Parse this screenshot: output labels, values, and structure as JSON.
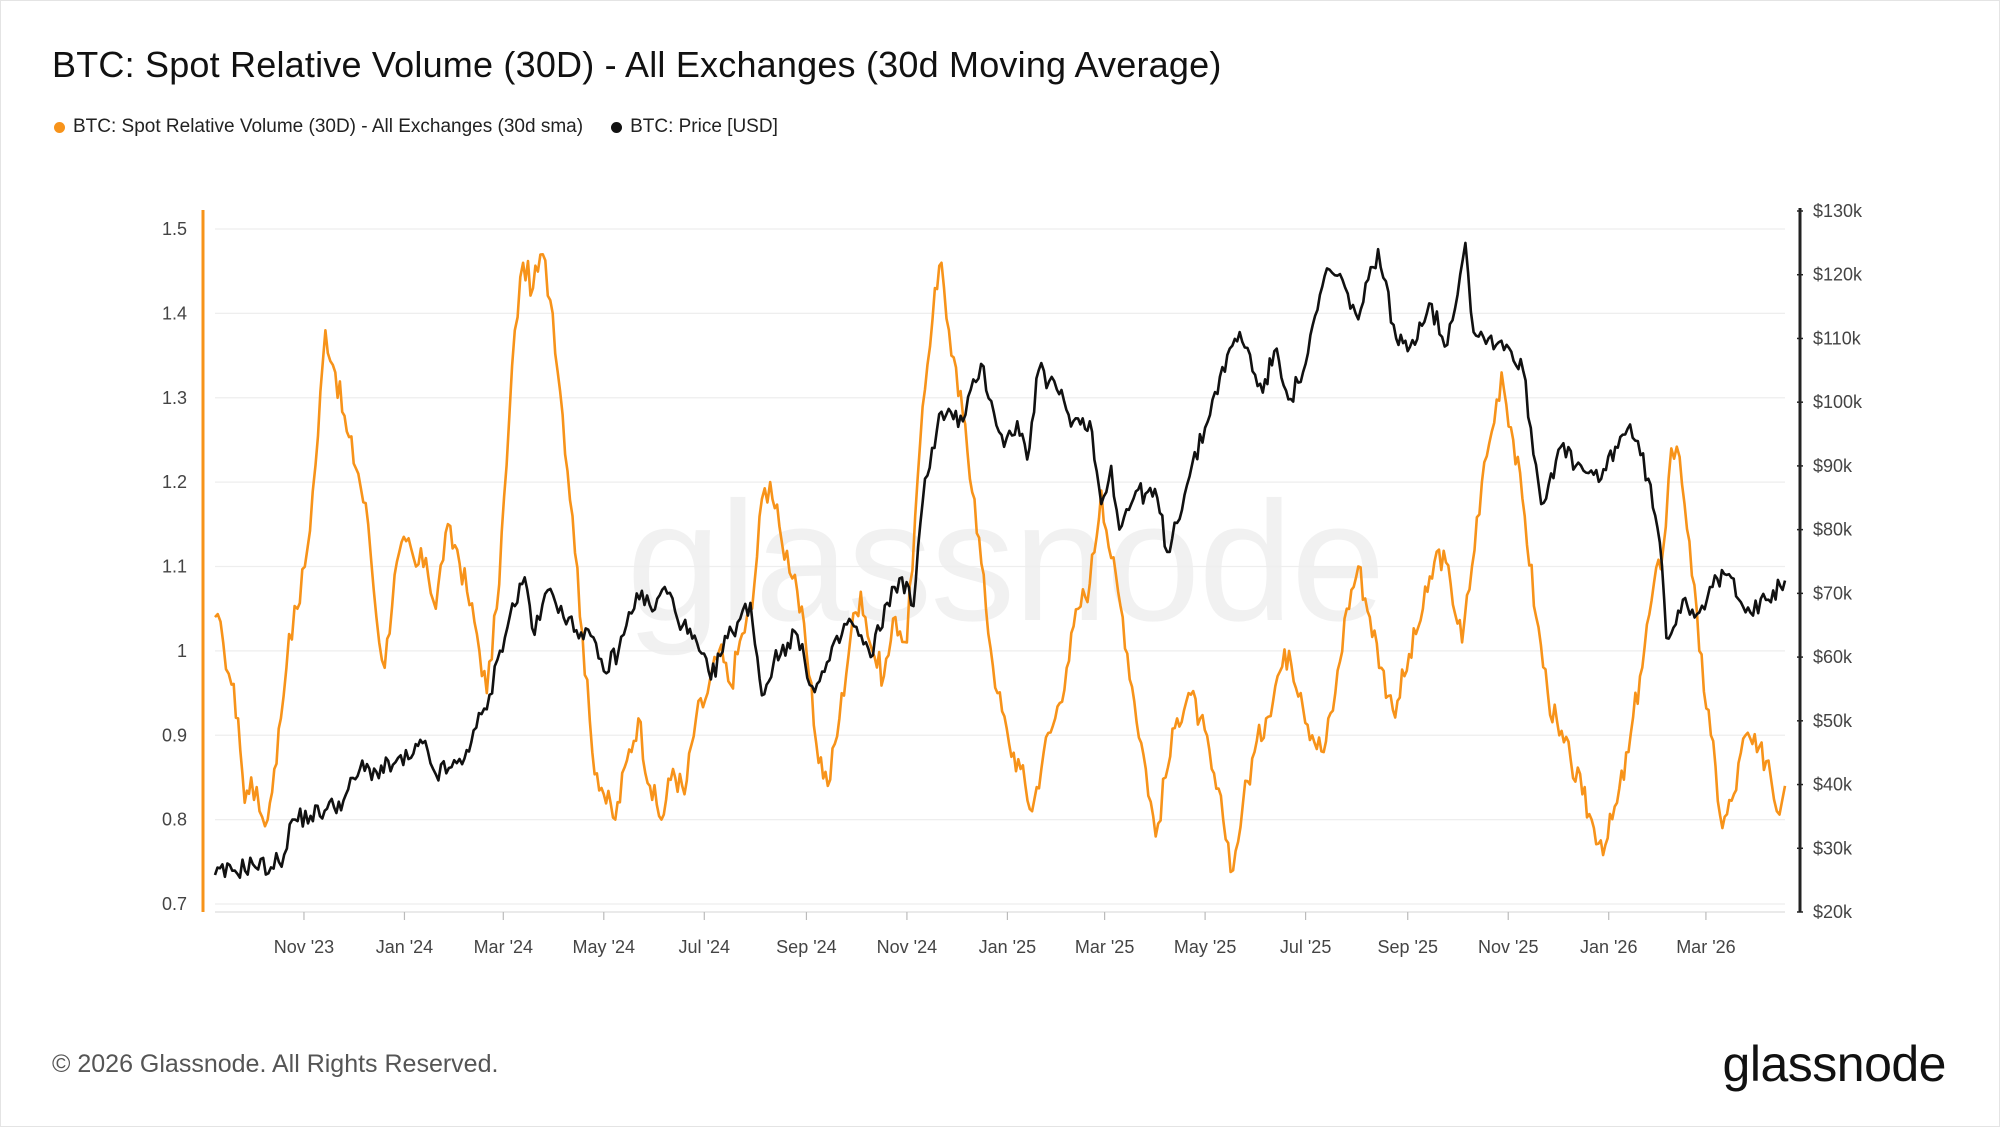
{
  "header": {
    "title": "BTC: Spot Relative Volume (30D) - All Exchanges (30d Moving Average)"
  },
  "legend": {
    "items": [
      {
        "label": "BTC: Spot Relative Volume (30D) - All Exchanges (30d sma)",
        "color": "#f7931a"
      },
      {
        "label": "BTC: Price [USD]",
        "color": "#111111"
      }
    ]
  },
  "footer": {
    "copyright": "© 2026 Glassnode. All Rights Reserved.",
    "brand": "glassnode"
  },
  "watermark": "glassnode",
  "chart_data": {
    "type": "line",
    "title": "BTC: Spot Relative Volume (30D) - All Exchanges (30d Moving Average)",
    "x_axis": {
      "start": "2023-09-08",
      "end": "2026-04-18",
      "tick_labels": [
        "Nov '23",
        "Jan '24",
        "Mar '24",
        "May '24",
        "Jul '24",
        "Sep '24",
        "Nov '24",
        "Jan '25",
        "Mar '25",
        "May '25",
        "Jul '25",
        "Sep '25",
        "Nov '25",
        "Jan '26",
        "Mar '26"
      ],
      "tick_dates": [
        "2023-11-01",
        "2024-01-01",
        "2024-03-01",
        "2024-05-01",
        "2024-07-01",
        "2024-09-01",
        "2024-11-01",
        "2025-01-01",
        "2025-03-01",
        "2025-05-01",
        "2025-07-01",
        "2025-09-01",
        "2025-11-01",
        "2026-01-01",
        "2026-03-01"
      ]
    },
    "y_left": {
      "ylim": [
        0.7,
        1.52
      ],
      "tick_labels": [
        "0.7",
        "0.8",
        "0.9",
        "1",
        "1.1",
        "1.2",
        "1.3",
        "1.4",
        "1.5"
      ],
      "tick_values": [
        0.7,
        0.8,
        0.9,
        1.0,
        1.1,
        1.2,
        1.3,
        1.4,
        1.5
      ]
    },
    "y_right": {
      "ylim": [
        20000,
        130000
      ],
      "tick_labels": [
        "$20k",
        "$30k",
        "$40k",
        "$50k",
        "$60k",
        "$70k",
        "$80k",
        "$90k",
        "$100k",
        "$110k",
        "$120k",
        "$130k"
      ],
      "tick_values": [
        20000,
        30000,
        40000,
        50000,
        60000,
        70000,
        80000,
        90000,
        100000,
        110000,
        120000,
        130000
      ]
    },
    "grid": true,
    "legend_position": "top-left",
    "series": [
      {
        "name": "BTC: Spot Relative Volume (30D) - All Exchanges (30d sma)",
        "color": "#f7931a",
        "axis": "left",
        "points": [
          [
            "2023-09-08",
            1.04
          ],
          [
            "2023-09-13",
            1.01
          ],
          [
            "2023-09-18",
            0.96
          ],
          [
            "2023-09-22",
            0.92
          ],
          [
            "2023-09-26",
            0.82
          ],
          [
            "2023-09-30",
            0.85
          ],
          [
            "2023-10-05",
            0.81
          ],
          [
            "2023-10-10",
            0.8
          ],
          [
            "2023-10-14",
            0.86
          ],
          [
            "2023-10-18",
            0.92
          ],
          [
            "2023-10-23",
            1.02
          ],
          [
            "2023-10-28",
            1.05
          ],
          [
            "2023-11-03",
            1.12
          ],
          [
            "2023-11-08",
            1.22
          ],
          [
            "2023-11-14",
            1.38
          ],
          [
            "2023-11-20",
            1.33
          ],
          [
            "2023-11-27",
            1.26
          ],
          [
            "2023-12-04",
            1.21
          ],
          [
            "2023-12-10",
            1.15
          ],
          [
            "2023-12-15",
            1.04
          ],
          [
            "2023-12-20",
            0.98
          ],
          [
            "2023-12-26",
            1.09
          ],
          [
            "2024-01-02",
            1.13
          ],
          [
            "2024-01-08",
            1.1
          ],
          [
            "2024-01-14",
            1.11
          ],
          [
            "2024-01-20",
            1.05
          ],
          [
            "2024-01-26",
            1.14
          ],
          [
            "2024-02-02",
            1.12
          ],
          [
            "2024-02-08",
            1.07
          ],
          [
            "2024-02-14",
            1.02
          ],
          [
            "2024-02-20",
            0.95
          ],
          [
            "2024-02-26",
            1.05
          ],
          [
            "2024-03-03",
            1.22
          ],
          [
            "2024-03-08",
            1.38
          ],
          [
            "2024-03-13",
            1.46
          ],
          [
            "2024-03-19",
            1.43
          ],
          [
            "2024-03-25",
            1.47
          ],
          [
            "2024-03-31",
            1.4
          ],
          [
            "2024-04-06",
            1.28
          ],
          [
            "2024-04-12",
            1.16
          ],
          [
            "2024-04-18",
            1.02
          ],
          [
            "2024-04-24",
            0.88
          ],
          [
            "2024-05-01",
            0.83
          ],
          [
            "2024-05-08",
            0.8
          ],
          [
            "2024-05-15",
            0.87
          ],
          [
            "2024-05-22",
            0.92
          ],
          [
            "2024-05-29",
            0.84
          ],
          [
            "2024-06-05",
            0.8
          ],
          [
            "2024-06-12",
            0.86
          ],
          [
            "2024-06-19",
            0.83
          ],
          [
            "2024-06-26",
            0.92
          ],
          [
            "2024-07-03",
            0.95
          ],
          [
            "2024-07-10",
            1.0
          ],
          [
            "2024-07-17",
            0.96
          ],
          [
            "2024-07-24",
            1.02
          ],
          [
            "2024-07-30",
            1.05
          ],
          [
            "2024-08-05",
            1.18
          ],
          [
            "2024-08-10",
            1.2
          ],
          [
            "2024-08-17",
            1.13
          ],
          [
            "2024-08-25",
            1.09
          ],
          [
            "2024-09-01",
            1.0
          ],
          [
            "2024-09-07",
            0.89
          ],
          [
            "2024-09-14",
            0.84
          ],
          [
            "2024-09-21",
            0.92
          ],
          [
            "2024-09-28",
            1.02
          ],
          [
            "2024-10-04",
            1.07
          ],
          [
            "2024-10-11",
            1.0
          ],
          [
            "2024-10-18",
            0.97
          ],
          [
            "2024-10-25",
            1.04
          ],
          [
            "2024-11-01",
            1.01
          ],
          [
            "2024-11-06",
            1.16
          ],
          [
            "2024-11-12",
            1.31
          ],
          [
            "2024-11-18",
            1.43
          ],
          [
            "2024-11-22",
            1.46
          ],
          [
            "2024-11-28",
            1.35
          ],
          [
            "2024-12-05",
            1.28
          ],
          [
            "2024-12-12",
            1.18
          ],
          [
            "2024-12-19",
            1.05
          ],
          [
            "2024-12-26",
            0.95
          ],
          [
            "2025-01-02",
            0.89
          ],
          [
            "2025-01-09",
            0.86
          ],
          [
            "2025-01-16",
            0.81
          ],
          [
            "2025-01-23",
            0.88
          ],
          [
            "2025-01-30",
            0.92
          ],
          [
            "2025-02-06",
            0.98
          ],
          [
            "2025-02-13",
            1.05
          ],
          [
            "2025-02-20",
            1.08
          ],
          [
            "2025-02-27",
            1.19
          ],
          [
            "2025-03-05",
            1.11
          ],
          [
            "2025-03-12",
            1.04
          ],
          [
            "2025-03-19",
            0.94
          ],
          [
            "2025-03-26",
            0.86
          ],
          [
            "2025-04-01",
            0.78
          ],
          [
            "2025-04-07",
            0.85
          ],
          [
            "2025-04-14",
            0.92
          ],
          [
            "2025-04-21",
            0.95
          ],
          [
            "2025-04-28",
            0.92
          ],
          [
            "2025-05-05",
            0.86
          ],
          [
            "2025-05-12",
            0.8
          ],
          [
            "2025-05-18",
            0.74
          ],
          [
            "2025-05-24",
            0.82
          ],
          [
            "2025-05-31",
            0.88
          ],
          [
            "2025-06-07",
            0.92
          ],
          [
            "2025-06-14",
            0.97
          ],
          [
            "2025-06-21",
            1.0
          ],
          [
            "2025-06-28",
            0.95
          ],
          [
            "2025-07-05",
            0.9
          ],
          [
            "2025-07-12",
            0.88
          ],
          [
            "2025-07-19",
            0.95
          ],
          [
            "2025-07-26",
            1.05
          ],
          [
            "2025-08-02",
            1.1
          ],
          [
            "2025-08-09",
            1.04
          ],
          [
            "2025-08-16",
            0.98
          ],
          [
            "2025-08-23",
            0.93
          ],
          [
            "2025-08-30",
            0.97
          ],
          [
            "2025-09-06",
            1.02
          ],
          [
            "2025-09-13",
            1.07
          ],
          [
            "2025-09-20",
            1.12
          ],
          [
            "2025-09-27",
            1.08
          ],
          [
            "2025-10-04",
            1.01
          ],
          [
            "2025-10-10",
            1.1
          ],
          [
            "2025-10-16",
            1.2
          ],
          [
            "2025-10-22",
            1.26
          ],
          [
            "2025-10-28",
            1.33
          ],
          [
            "2025-11-04",
            1.25
          ],
          [
            "2025-11-11",
            1.16
          ],
          [
            "2025-11-18",
            1.04
          ],
          [
            "2025-11-25",
            0.95
          ],
          [
            "2025-12-02",
            0.9
          ],
          [
            "2025-12-09",
            0.87
          ],
          [
            "2025-12-16",
            0.83
          ],
          [
            "2025-12-23",
            0.79
          ],
          [
            "2025-12-30",
            0.77
          ],
          [
            "2026-01-06",
            0.82
          ],
          [
            "2026-01-13",
            0.88
          ],
          [
            "2026-01-20",
            0.97
          ],
          [
            "2026-01-27",
            1.06
          ],
          [
            "2026-02-03",
            1.12
          ],
          [
            "2026-02-08",
            1.24
          ],
          [
            "2026-02-13",
            1.23
          ],
          [
            "2026-02-19",
            1.13
          ],
          [
            "2026-02-25",
            1.0
          ],
          [
            "2026-03-04",
            0.9
          ],
          [
            "2026-03-11",
            0.79
          ],
          [
            "2026-03-18",
            0.83
          ],
          [
            "2026-03-25",
            0.9
          ],
          [
            "2026-04-01",
            0.88
          ],
          [
            "2026-04-08",
            0.87
          ],
          [
            "2026-04-13",
            0.81
          ],
          [
            "2026-04-18",
            0.84
          ]
        ]
      },
      {
        "name": "BTC: Price [USD]",
        "color": "#111111",
        "axis": "right",
        "points": [
          [
            "2023-09-08",
            25800
          ],
          [
            "2023-09-20",
            26500
          ],
          [
            "2023-10-01",
            27500
          ],
          [
            "2023-10-12",
            27000
          ],
          [
            "2023-10-20",
            29000
          ],
          [
            "2023-10-25",
            34500
          ],
          [
            "2023-11-05",
            35100
          ],
          [
            "2023-11-15",
            36200
          ],
          [
            "2023-11-25",
            37500
          ],
          [
            "2023-12-05",
            42500
          ],
          [
            "2023-12-15",
            42000
          ],
          [
            "2023-12-25",
            43100
          ],
          [
            "2024-01-05",
            44200
          ],
          [
            "2024-01-12",
            46500
          ],
          [
            "2024-01-20",
            41600
          ],
          [
            "2024-01-28",
            42600
          ],
          [
            "2024-02-05",
            43200
          ],
          [
            "2024-02-12",
            48500
          ],
          [
            "2024-02-20",
            51800
          ],
          [
            "2024-02-28",
            61000
          ],
          [
            "2024-03-05",
            66500
          ],
          [
            "2024-03-14",
            72500
          ],
          [
            "2024-03-20",
            63500
          ],
          [
            "2024-03-28",
            70500
          ],
          [
            "2024-04-05",
            68000
          ],
          [
            "2024-04-13",
            64000
          ],
          [
            "2024-04-20",
            64500
          ],
          [
            "2024-05-01",
            57800
          ],
          [
            "2024-05-10",
            61000
          ],
          [
            "2024-05-21",
            70000
          ],
          [
            "2024-06-01",
            67500
          ],
          [
            "2024-06-07",
            71000
          ],
          [
            "2024-06-18",
            65000
          ],
          [
            "2024-06-28",
            61000
          ],
          [
            "2024-07-05",
            56500
          ],
          [
            "2024-07-15",
            63000
          ],
          [
            "2024-07-29",
            68500
          ],
          [
            "2024-08-05",
            54000
          ],
          [
            "2024-08-12",
            59000
          ],
          [
            "2024-08-25",
            64000
          ],
          [
            "2024-09-06",
            54500
          ],
          [
            "2024-09-15",
            59500
          ],
          [
            "2024-09-27",
            66000
          ],
          [
            "2024-10-10",
            60000
          ],
          [
            "2024-10-20",
            68500
          ],
          [
            "2024-10-29",
            72500
          ],
          [
            "2024-11-05",
            68000
          ],
          [
            "2024-11-12",
            88000
          ],
          [
            "2024-11-22",
            98500
          ],
          [
            "2024-12-05",
            97000
          ],
          [
            "2024-12-16",
            106000
          ],
          [
            "2024-12-30",
            93000
          ],
          [
            "2025-01-07",
            97000
          ],
          [
            "2025-01-13",
            91000
          ],
          [
            "2025-01-20",
            105000
          ],
          [
            "2025-01-31",
            102000
          ],
          [
            "2025-02-10",
            97000
          ],
          [
            "2025-02-20",
            97000
          ],
          [
            "2025-02-27",
            84000
          ],
          [
            "2025-03-05",
            90000
          ],
          [
            "2025-03-10",
            80000
          ],
          [
            "2025-03-20",
            86000
          ],
          [
            "2025-04-02",
            85000
          ],
          [
            "2025-04-08",
            76500
          ],
          [
            "2025-04-20",
            87000
          ],
          [
            "2025-05-01",
            96000
          ],
          [
            "2025-05-10",
            104000
          ],
          [
            "2025-05-22",
            111000
          ],
          [
            "2025-06-05",
            101500
          ],
          [
            "2025-06-12",
            108000
          ],
          [
            "2025-06-22",
            100500
          ],
          [
            "2025-07-01",
            106000
          ],
          [
            "2025-07-14",
            121000
          ],
          [
            "2025-07-25",
            118000
          ],
          [
            "2025-08-02",
            113000
          ],
          [
            "2025-08-14",
            124000
          ],
          [
            "2025-08-25",
            110000
          ],
          [
            "2025-09-01",
            108000
          ],
          [
            "2025-09-14",
            115500
          ],
          [
            "2025-09-25",
            109000
          ],
          [
            "2025-10-06",
            125000
          ],
          [
            "2025-10-11",
            111000
          ],
          [
            "2025-10-20",
            110000
          ],
          [
            "2025-10-31",
            109000
          ],
          [
            "2025-11-10",
            105000
          ],
          [
            "2025-11-21",
            84000
          ],
          [
            "2025-12-03",
            93000
          ],
          [
            "2025-12-12",
            90000
          ],
          [
            "2025-12-26",
            87500
          ],
          [
            "2026-01-05",
            93000
          ],
          [
            "2026-01-14",
            96500
          ],
          [
            "2026-01-25",
            88000
          ],
          [
            "2026-02-01",
            78000
          ],
          [
            "2026-02-05",
            63000
          ],
          [
            "2026-02-15",
            69000
          ],
          [
            "2026-02-25",
            67000
          ],
          [
            "2026-03-05",
            71000
          ],
          [
            "2026-03-15",
            73000
          ],
          [
            "2026-03-28",
            67000
          ],
          [
            "2026-04-08",
            69000
          ],
          [
            "2026-04-18",
            72000
          ]
        ]
      }
    ]
  }
}
